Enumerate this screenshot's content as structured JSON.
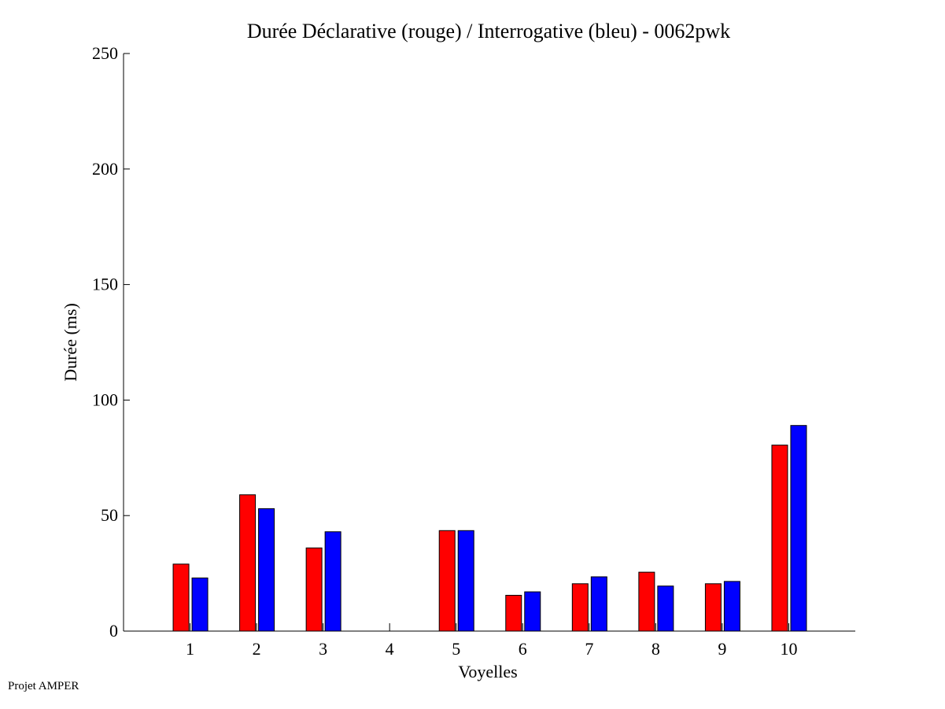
{
  "chart_data": {
    "type": "bar",
    "title": "Durée Déclarative (rouge) / Interrogative (bleu) - 0062pwk",
    "xlabel": "Voyelles",
    "ylabel": "Durée (ms)",
    "categories": [
      "1",
      "2",
      "3",
      "4",
      "5",
      "6",
      "7",
      "8",
      "9",
      "10"
    ],
    "xlim": [
      0,
      11
    ],
    "ylim": [
      0,
      250
    ],
    "yticks": [
      "0",
      "50",
      "100",
      "150",
      "200",
      "250"
    ],
    "grid": false,
    "series": [
      {
        "name": "Déclarative",
        "color": "#ff0000",
        "values": [
          29,
          59,
          36,
          0,
          43.5,
          15.5,
          20.5,
          25.5,
          20.5,
          80.5
        ]
      },
      {
        "name": "Interrogative",
        "color": "#0000ff",
        "values": [
          23,
          53,
          43,
          0,
          43.5,
          17,
          23.5,
          19.5,
          21.5,
          89
        ]
      }
    ]
  },
  "footer": "Projet AMPER"
}
